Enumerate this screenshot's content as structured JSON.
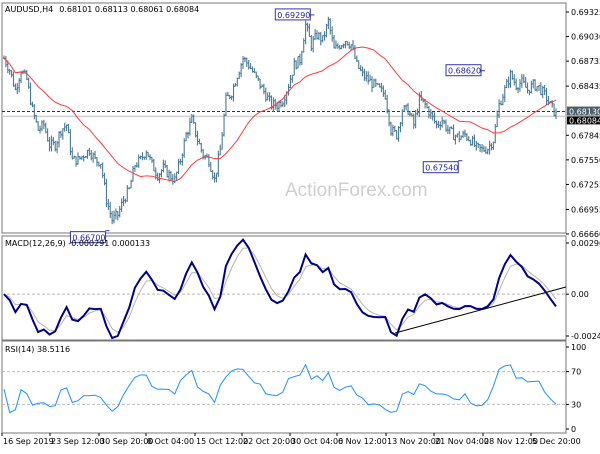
{
  "chart_data": [
    {
      "type": "ohlc",
      "title": "AUDUSD,H4",
      "ohlc_header": "0.68101 0.68113 0.68061 0.68084",
      "yticks": [
        "0.69325",
        "0.69030",
        "0.68735",
        "0.68435",
        "0.67845",
        "0.67550",
        "0.67255",
        "0.66955",
        "0.66660"
      ],
      "ylim": [
        0.6666,
        0.69325
      ],
      "current_price_label": "0.68084",
      "level_label": "0.68130",
      "level": 0.6813,
      "current": 0.68084,
      "annotations": [
        {
          "text": "0.69290",
          "value": 0.6929,
          "at_index": 54
        },
        {
          "text": "0.66700",
          "value": 0.667,
          "at_index": 18
        },
        {
          "text": "0.68620",
          "value": 0.6862,
          "at_index": 84
        },
        {
          "text": "0.67540",
          "value": 0.6754,
          "at_index": 80
        }
      ],
      "watermark": "ActionForex.com",
      "close": [
        0.6877,
        0.6863,
        0.6839,
        0.6863,
        0.6851,
        0.6815,
        0.6791,
        0.6797,
        0.6773,
        0.6773,
        0.6791,
        0.6797,
        0.6755,
        0.6755,
        0.6761,
        0.6767,
        0.6755,
        0.6752,
        0.6707,
        0.6683,
        0.6689,
        0.6707,
        0.6719,
        0.6749,
        0.6755,
        0.6767,
        0.6749,
        0.6737,
        0.6745,
        0.6737,
        0.6731,
        0.6755,
        0.6785,
        0.6803,
        0.6779,
        0.6761,
        0.6755,
        0.6731,
        0.6767,
        0.6827,
        0.6836,
        0.6857,
        0.6877,
        0.6869,
        0.6857,
        0.6845,
        0.6833,
        0.6821,
        0.6821,
        0.6827,
        0.6845,
        0.6869,
        0.6875,
        0.6917,
        0.6893,
        0.6905,
        0.6899,
        0.6921,
        0.6887,
        0.6893,
        0.6899,
        0.6893,
        0.6869,
        0.6857,
        0.6851,
        0.6845,
        0.6839,
        0.6833,
        0.6791,
        0.6785,
        0.6815,
        0.6815,
        0.6797,
        0.6827,
        0.6821,
        0.6809,
        0.6797,
        0.6803,
        0.6791,
        0.6785,
        0.6782,
        0.6785,
        0.6779,
        0.6769,
        0.6767,
        0.6769,
        0.6779,
        0.6821,
        0.6839,
        0.6857,
        0.6845,
        0.6848,
        0.6839,
        0.6845,
        0.6842,
        0.6833,
        0.6821,
        0.6809
      ],
      "colors": {
        "bars": "#4a7a96",
        "ma": "#ff3b3b"
      }
    },
    {
      "type": "line",
      "title": "MACD(12,26,9) -0.000291 0.000133",
      "yticks": [
        "0.00296",
        "0.00",
        "-0.00242"
      ],
      "ylim": [
        -0.00242,
        0.00296
      ],
      "colors": {
        "macd": "#00008b",
        "signal": "#b4b4b4",
        "trendline": "#000000"
      }
    },
    {
      "type": "line",
      "title": "RSI(14) 38.5116",
      "yticks": [
        "100",
        "70",
        "30",
        "0"
      ],
      "ylim": [
        0,
        100
      ],
      "levels": [
        70,
        30
      ],
      "colors": {
        "rsi": "#1e90ff"
      }
    }
  ],
  "xaxis": {
    "ticks": [
      "16 Sep 2019",
      "23 Sep 12:00",
      "30 Sep 20:00",
      "8 Oct 04:00",
      "15 Oct 12:00",
      "22 Oct 20:00",
      "30 Oct 04:00",
      "6 Nov 12:00",
      "13 Nov 20:00",
      "21 Nov 04:00",
      "28 Nov 12:00",
      "5 Dec 20:00"
    ]
  }
}
